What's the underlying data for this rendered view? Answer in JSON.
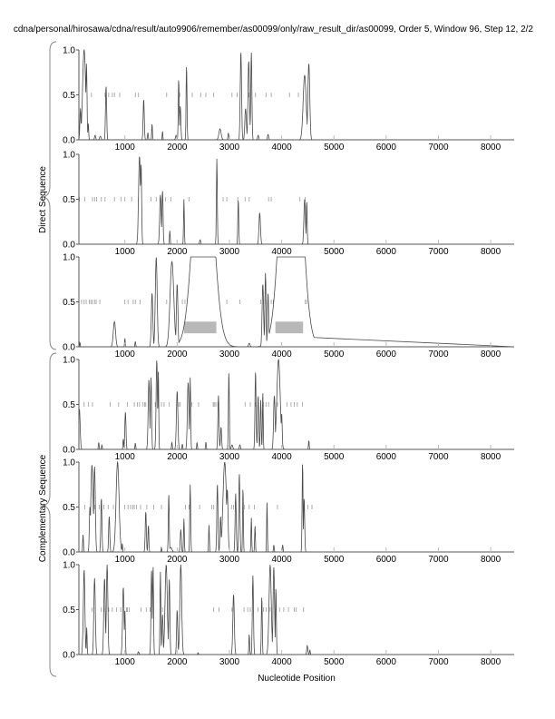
{
  "title": "cdna/personal/hirosawa/cdna/result/auto9906/remember/as00099/only/raw_result_dir/as00099, Order 5, Window 96, Step 12, 2/2",
  "group_labels": {
    "direct": "Direct Sequence",
    "complementary": "Complementary Sequence"
  },
  "xlabel": "Nucleotide Position",
  "colors": {
    "line": "#4a4a4a",
    "marks": "#9a9a9a",
    "box": "#b8b8b8",
    "axis": "#555555"
  },
  "chart_data": {
    "type": "line",
    "title": "cdna/personal/hirosawa/cdna/result/auto9906/remember/as00099/only/raw_result_dir/as00099, Order 5, Window 96, Step 12, 2/2",
    "xlabel": "Nucleotide Position",
    "ylabel": "",
    "xlim": [
      120,
      8450
    ],
    "ylim": [
      0,
      1
    ],
    "x_ticks": [
      "1000",
      "2000",
      "3000",
      "4000",
      "5000",
      "6000",
      "7000",
      "8000"
    ],
    "y_ticks": [
      "0.0",
      "0.5",
      "1.0"
    ],
    "note_peaks": "each peak is [position, probability, width]",
    "panels": [
      {
        "name": "direct-frame-1",
        "peaks": [
          [
            150,
            0.35,
            15
          ],
          [
            220,
            1.0,
            40
          ],
          [
            265,
            0.85,
            15
          ],
          [
            300,
            0.18,
            10
          ],
          [
            430,
            0.05,
            15
          ],
          [
            530,
            0.04,
            20
          ],
          [
            640,
            0.6,
            15
          ],
          [
            1360,
            0.45,
            15
          ],
          [
            1440,
            0.08,
            10
          ],
          [
            1520,
            0.18,
            10
          ],
          [
            1720,
            0.1,
            8
          ],
          [
            1980,
            0.05,
            15
          ],
          [
            2030,
            0.68,
            12
          ],
          [
            2060,
            0.38,
            15
          ],
          [
            2180,
            0.83,
            12
          ],
          [
            2820,
            0.12,
            30
          ],
          [
            2980,
            0.08,
            10
          ],
          [
            3220,
            0.98,
            18
          ],
          [
            3310,
            0.35,
            20
          ],
          [
            3370,
            0.88,
            20
          ],
          [
            3420,
            0.97,
            15
          ],
          [
            3550,
            0.05,
            15
          ],
          [
            3740,
            0.06,
            15
          ],
          [
            4440,
            0.72,
            40
          ],
          [
            4520,
            0.85,
            25
          ]
        ],
        "marks": [
          360,
          620,
          690,
          760,
          800,
          900,
          1200,
          1260,
          1800,
          2050,
          2290,
          2450,
          2550,
          2700,
          3050,
          3150,
          3370,
          3500,
          3700,
          3800,
          4150,
          4320
        ],
        "boxes": []
      },
      {
        "name": "direct-frame-2",
        "peaks": [
          [
            1280,
            0.98,
            25
          ],
          [
            1310,
            0.9,
            15
          ],
          [
            1680,
            0.55,
            20
          ],
          [
            1720,
            0.6,
            15
          ],
          [
            1860,
            0.15,
            10
          ],
          [
            2130,
            0.5,
            10
          ],
          [
            2440,
            0.05,
            15
          ],
          [
            2760,
            0.95,
            12
          ],
          [
            3170,
            0.5,
            12
          ],
          [
            3580,
            0.35,
            20
          ],
          [
            4440,
            0.5,
            20
          ],
          [
            4480,
            0.48,
            12
          ]
        ],
        "marks": [
          130,
          230,
          380,
          420,
          460,
          550,
          620,
          800,
          930,
          1000,
          1130,
          1260,
          1500,
          1600,
          1680,
          1780,
          1880,
          2230,
          2880,
          2950,
          3160,
          3300,
          3380,
          3750,
          3800,
          4350,
          4450
        ],
        "boxes": []
      },
      {
        "name": "direct-frame-3",
        "peaks": [
          [
            140,
            0.05,
            8
          ],
          [
            800,
            0.28,
            30
          ],
          [
            1000,
            0.1,
            8
          ],
          [
            1200,
            0.06,
            10
          ],
          [
            1520,
            0.6,
            20
          ],
          [
            1600,
            1.0,
            25
          ],
          [
            1900,
            0.95,
            50
          ],
          [
            2000,
            0.7,
            20
          ],
          [
            2200,
            0.3,
            20
          ],
          [
            2260,
            0.2,
            15
          ],
          [
            2500,
            3,
            230
          ],
          [
            3380,
            0.04,
            20
          ],
          [
            3640,
            0.7,
            20
          ],
          [
            3690,
            0.82,
            15
          ],
          [
            3740,
            0.6,
            15
          ],
          [
            3870,
            0.45,
            8
          ],
          [
            4180,
            4,
            230
          ],
          [
            4540,
            0.25,
            15
          ]
        ],
        "marks": [
          170,
          220,
          260,
          320,
          350,
          380,
          420,
          450,
          520,
          1000,
          1060,
          1160,
          1200,
          1290,
          1800,
          2100,
          2150,
          2950,
          3200,
          3600,
          3650,
          3700,
          3740,
          3800,
          3840,
          4450,
          4480
        ],
        "boxes": [
          [
            2130,
            2750,
            0.15,
            0.28
          ],
          [
            3880,
            4410,
            0.15,
            0.28
          ]
        ]
      },
      {
        "name": "complementary-frame-1",
        "peaks": [
          [
            130,
            0.45,
            20
          ],
          [
            500,
            0.08,
            10
          ],
          [
            560,
            0.05,
            10
          ],
          [
            970,
            0.12,
            10
          ],
          [
            1010,
            0.42,
            15
          ],
          [
            1200,
            0.07,
            10
          ],
          [
            1460,
            0.78,
            20
          ],
          [
            1500,
            0.8,
            15
          ],
          [
            1610,
            1.0,
            18
          ],
          [
            1640,
            0.9,
            10
          ],
          [
            1900,
            0.08,
            10
          ],
          [
            2000,
            0.65,
            20
          ],
          [
            2100,
            0.06,
            10
          ],
          [
            2210,
            0.75,
            20
          ],
          [
            2250,
            0.8,
            12
          ],
          [
            2380,
            0.08,
            10
          ],
          [
            2550,
            0.08,
            10
          ],
          [
            2790,
            0.6,
            15
          ],
          [
            2840,
            0.25,
            15
          ],
          [
            2990,
            0.87,
            12
          ],
          [
            3050,
            0.05,
            20
          ],
          [
            3200,
            0.05,
            15
          ],
          [
            3500,
            0.87,
            15
          ],
          [
            3550,
            0.6,
            15
          ],
          [
            3600,
            0.55,
            12
          ],
          [
            3640,
            0.65,
            10
          ],
          [
            3860,
            0.6,
            20
          ],
          [
            3940,
            1.0,
            45
          ],
          [
            4000,
            0.4,
            15
          ],
          [
            4520,
            0.1,
            10
          ]
        ],
        "marks": [
          220,
          300,
          380,
          720,
          880,
          1050,
          1180,
          1240,
          1280,
          1340,
          1380,
          1400,
          1580,
          1700,
          1750,
          1850,
          2030,
          2060,
          2280,
          2410,
          2690,
          2710,
          2740,
          2780,
          3300,
          3400,
          3500,
          3650,
          3700,
          3750,
          3920,
          4100,
          4180,
          4240,
          4300,
          4400
        ],
        "boxes": []
      },
      {
        "name": "complementary-frame-2",
        "peaks": [
          [
            200,
            0.2,
            10
          ],
          [
            330,
            0.5,
            15
          ],
          [
            370,
            0.97,
            30
          ],
          [
            420,
            0.95,
            20
          ],
          [
            550,
            0.6,
            15
          ],
          [
            700,
            0.4,
            15
          ],
          [
            860,
            1.0,
            40
          ],
          [
            950,
            0.1,
            8
          ],
          [
            1400,
            0.45,
            15
          ],
          [
            1450,
            0.3,
            12
          ],
          [
            1700,
            0.05,
            8
          ],
          [
            1840,
            0.65,
            12
          ],
          [
            1880,
            0.05,
            30
          ],
          [
            2070,
            0.25,
            15
          ],
          [
            2130,
            0.37,
            10
          ],
          [
            2250,
            0.75,
            12
          ],
          [
            2610,
            0.3,
            10
          ],
          [
            2770,
            0.76,
            15
          ],
          [
            2830,
            0.4,
            15
          ],
          [
            2910,
            1.0,
            45
          ],
          [
            2960,
            0.7,
            20
          ],
          [
            3120,
            0.65,
            15
          ],
          [
            3190,
            0.88,
            15
          ],
          [
            3260,
            0.72,
            10
          ],
          [
            3420,
            0.38,
            10
          ],
          [
            3490,
            0.3,
            10
          ],
          [
            3720,
            0.55,
            10
          ],
          [
            3850,
            0.08,
            10
          ],
          [
            4020,
            0.08,
            10
          ],
          [
            4400,
            1.0,
            12
          ],
          [
            4430,
            0.6,
            15
          ]
        ],
        "marks": [
          230,
          420,
          510,
          600,
          680,
          780,
          1000,
          1060,
          1110,
          1150,
          1180,
          1220,
          1300,
          1420,
          1550,
          1700,
          2160,
          2230,
          2430,
          2660,
          2700,
          3040,
          3080,
          3290,
          3380,
          3480,
          3720,
          3920,
          4500,
          4580
        ],
        "boxes": []
      },
      {
        "name": "complementary-frame-3",
        "peaks": [
          [
            200,
            0.25,
            15
          ],
          [
            220,
            0.95,
            20
          ],
          [
            270,
            0.3,
            10
          ],
          [
            420,
            0.85,
            20
          ],
          [
            610,
            0.85,
            20
          ],
          [
            660,
            1.0,
            20
          ],
          [
            970,
            0.75,
            20
          ],
          [
            1000,
            0.5,
            12
          ],
          [
            1260,
            0.03,
            15
          ],
          [
            1510,
            0.95,
            15
          ],
          [
            1540,
            1.0,
            12
          ],
          [
            1680,
            0.92,
            12
          ],
          [
            1720,
            0.45,
            15
          ],
          [
            1790,
            1.0,
            30
          ],
          [
            1850,
            0.85,
            15
          ],
          [
            2000,
            0.5,
            15
          ],
          [
            2070,
            1.0,
            25
          ],
          [
            2400,
            0.02,
            10
          ],
          [
            3080,
            0.67,
            20
          ],
          [
            3380,
            0.23,
            10
          ],
          [
            3450,
            0.88,
            15
          ],
          [
            3620,
            0.65,
            12
          ],
          [
            3780,
            1.0,
            30
          ],
          [
            3850,
            0.98,
            20
          ],
          [
            3890,
            0.75,
            12
          ],
          [
            4490,
            0.1,
            15
          ],
          [
            4540,
            0.05,
            10
          ]
        ],
        "marks": [
          370,
          550,
          600,
          690,
          760,
          840,
          920,
          1030,
          1050,
          1080,
          1310,
          1410,
          1480,
          1720,
          2700,
          2800,
          3050,
          3280,
          3350,
          3400,
          3550,
          3650,
          3700,
          3780,
          3960,
          4040,
          4130,
          4240,
          4280,
          4420
        ],
        "boxes": []
      }
    ]
  }
}
